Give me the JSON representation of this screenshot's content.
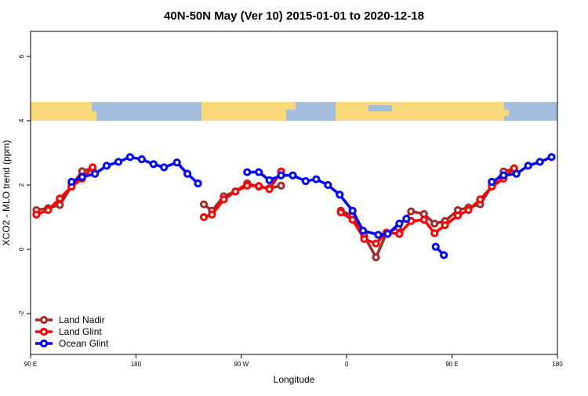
{
  "chart_data": {
    "type": "line",
    "title": "40N-50N May (Ver 10)   2015-01-01 to 2020-12-18",
    "x_label": "Longitude",
    "y_label": "XCO2 - MLO trend (ppm)",
    "xlim": [
      90,
      540
    ],
    "ylim": [
      -3.27,
      6.78
    ],
    "xticks": [
      {
        "value": 90,
        "label": "90 E"
      },
      {
        "value": 180,
        "label": "180"
      },
      {
        "value": 270,
        "label": "90 W"
      },
      {
        "value": 360,
        "label": "0"
      },
      {
        "value": 450,
        "label": "90 E"
      },
      {
        "value": 540,
        "label": "180"
      }
    ],
    "yticks": [
      -2,
      0,
      2,
      4,
      6
    ],
    "legend": "bottom-left",
    "series": [
      {
        "name": "Land Nadir",
        "color": "#a52a2a",
        "x": [
          95,
          105,
          115,
          125,
          134,
          143,
          null,
          238,
          245,
          255,
          265,
          275,
          285,
          294,
          304,
          null,
          355,
          365,
          375,
          385,
          394,
          404,
          415,
          426,
          435,
          444,
          455,
          464,
          474,
          484,
          494,
          503
        ],
        "values": [
          1.22,
          1.28,
          1.38,
          1.97,
          2.43,
          2.52,
          null,
          1.4,
          1.2,
          1.65,
          1.8,
          2.05,
          1.95,
          1.9,
          1.98,
          null,
          1.2,
          1.05,
          0.42,
          -0.25,
          0.5,
          0.68,
          1.18,
          1.1,
          0.8,
          0.88,
          1.22,
          1.3,
          1.4,
          1.98,
          2.42,
          2.5
        ]
      },
      {
        "name": "Land Glint",
        "color": "#ff0000",
        "x": [
          95,
          105,
          115,
          125,
          134,
          143,
          null,
          238,
          245,
          255,
          265,
          275,
          285,
          294,
          304,
          null,
          355,
          365,
          375,
          385,
          394,
          405,
          415,
          426,
          435,
          444,
          455,
          464,
          474,
          484,
          494,
          503
        ],
        "values": [
          1.08,
          1.22,
          1.58,
          1.95,
          2.2,
          2.55,
          null,
          1.0,
          1.08,
          1.55,
          1.8,
          1.98,
          1.97,
          1.87,
          2.42,
          null,
          1.15,
          0.92,
          0.32,
          0.18,
          0.52,
          0.48,
          0.88,
          0.92,
          0.5,
          0.75,
          1.05,
          1.22,
          1.55,
          1.95,
          2.2,
          2.52
        ]
      },
      {
        "name": "Ocean Glint",
        "color": "#0000ff",
        "x": [
          125,
          134,
          145,
          155,
          165,
          175,
          185,
          195,
          204,
          215,
          224,
          233,
          null,
          275,
          285,
          294,
          304,
          314,
          325,
          334,
          344,
          354,
          365,
          374,
          387,
          395,
          405,
          411,
          null,
          436,
          443,
          null,
          484,
          494,
          505,
          515,
          525,
          535
        ],
        "values": [
          2.1,
          2.25,
          2.35,
          2.6,
          2.72,
          2.87,
          2.8,
          2.65,
          2.55,
          2.7,
          2.35,
          2.05,
          null,
          2.4,
          2.4,
          2.15,
          2.3,
          2.3,
          2.12,
          2.18,
          2.0,
          1.7,
          1.2,
          0.58,
          0.45,
          0.48,
          0.8,
          0.95,
          null,
          0.08,
          -0.18,
          null,
          2.1,
          2.3,
          2.35,
          2.6,
          2.72,
          2.87
        ]
      }
    ]
  }
}
